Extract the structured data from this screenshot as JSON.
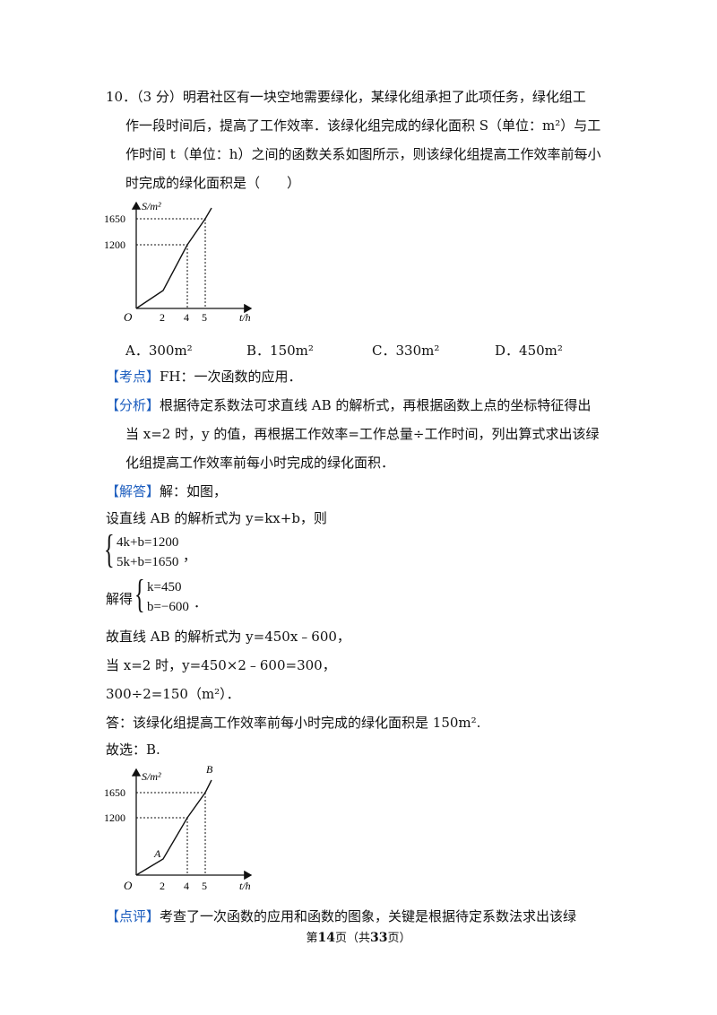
{
  "question": {
    "line1": "10．（3 分）明君社区有一块空地需要绿化，某绿化组承担了此项任务，绿化组工",
    "line2": "作一段时间后，提高了工作效率．该绿化组完成的绿化面积 S（单位：m²）与工",
    "line3": "作时间 t（单位：h）之间的函数关系如图所示，则该绿化组提高工作效率前每小",
    "line4": "时完成的绿化面积是（　　）"
  },
  "options": {
    "a": "A．300m²",
    "b": "B．150m²",
    "c": "C．330m²",
    "d": "D．450m²"
  },
  "kaodian": {
    "tag": "【考点】",
    "text": "FH：一次函数的应用．"
  },
  "fenxi": {
    "tag": "【分析】",
    "line1": "根据待定系数法可求直线 AB 的解析式，再根据函数上点的坐标特征得出",
    "line2": "当 x=2 时，y 的值，再根据工作效率=工作总量÷工作时间，列出算式求出该绿",
    "line3": "化组提高工作效率前每小时完成的绿化面积．"
  },
  "jieda": {
    "tag": "【解答】",
    "text": "解：如图，",
    "set_line": "设直线 AB 的解析式为 y=kx+b，则",
    "system1": {
      "eq1": "4k+b=1200",
      "eq2": "5k+b=1650",
      "tail": "，"
    },
    "solve_prefix": "解得",
    "system2": {
      "eq1": "k=450",
      "eq2": "b=−600",
      "tail": "．"
    },
    "line_result": "故直线 AB 的解析式为 y=450x﹣600，",
    "when_line": "当 x=2 时，y=450×2﹣600=300，",
    "calc_line": "300÷2=150（m²）．",
    "answer_line": "答：该绿化组提高工作效率前每小时完成的绿化面积是 150m².",
    "choice_line": "故选：B."
  },
  "dianping": {
    "tag": "【点评】",
    "text": "考查了一次函数的应用和函数的图象，关键是根据待定系数法求出该绿"
  },
  "graph1": {
    "y_axis_label": "S/m²",
    "x_axis_label": "t/h",
    "origin_label": "O",
    "y_ticks": [
      "1650",
      "1200"
    ],
    "x_ticks": [
      "2",
      "4",
      "5"
    ]
  },
  "graph2": {
    "y_axis_label": "S/m²",
    "x_axis_label": "t/h",
    "origin_label": "O",
    "y_ticks": [
      "1650",
      "1200"
    ],
    "x_ticks": [
      "2",
      "4",
      "5"
    ],
    "point_a": "A",
    "point_b": "B"
  },
  "chart_data": {
    "type": "line",
    "x": [
      0,
      2,
      4,
      5,
      5.4
    ],
    "y": [
      0,
      300,
      1200,
      1650,
      1830
    ],
    "xlabel": "t/h",
    "ylabel": "S/m²",
    "x_ticks": [
      2,
      4,
      5
    ],
    "y_ticks": [
      1200,
      1650
    ],
    "dashed_guides": [
      [
        4,
        1200
      ],
      [
        5,
        1650
      ]
    ]
  },
  "footer": {
    "prefix": "第",
    "page": "14",
    "mid": "页（共",
    "total": "33",
    "suffix": "页）"
  }
}
